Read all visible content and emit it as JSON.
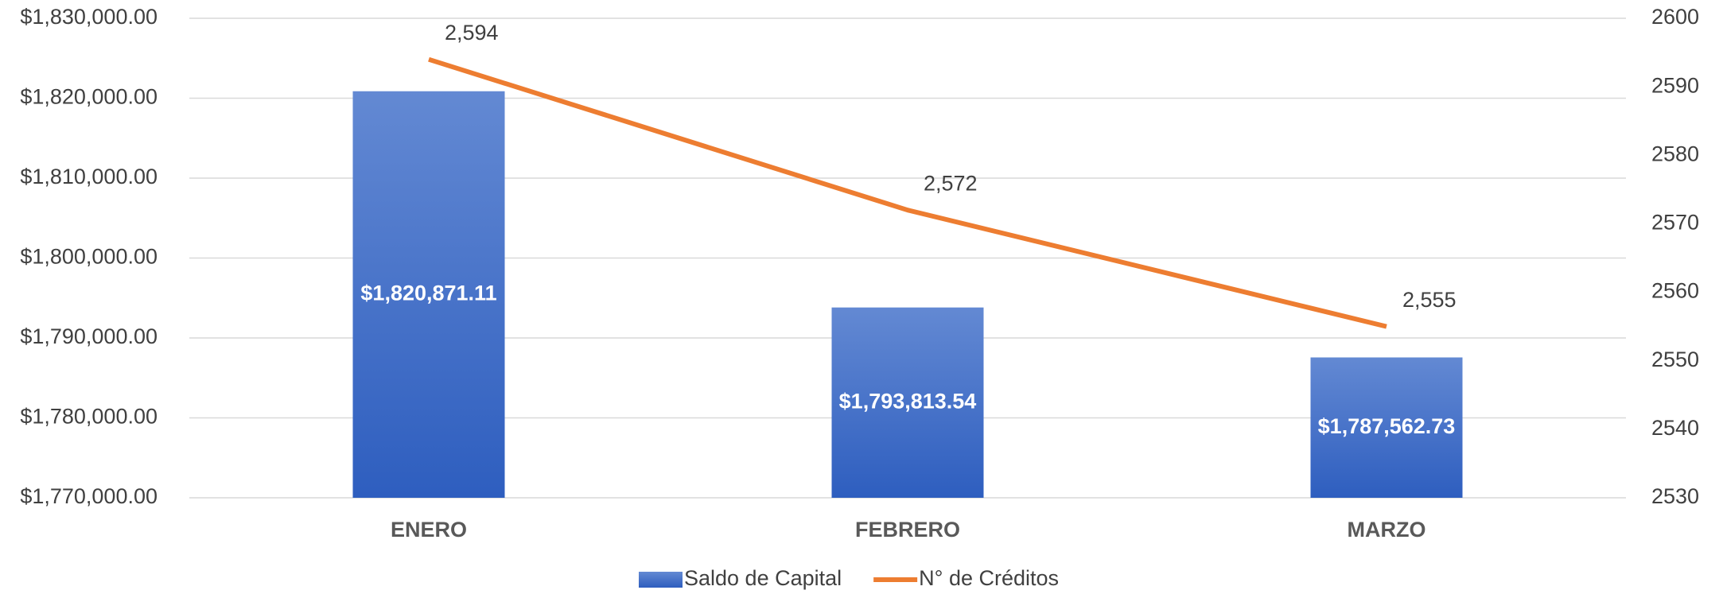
{
  "chart_data": {
    "type": "bar",
    "categories": [
      "ENERO",
      "FEBRERO",
      "MARZO"
    ],
    "series": [
      {
        "name": "Saldo de Capital",
        "color": "#3a68c6",
        "values": [
          1820871.11,
          1793813.54,
          1787562.73
        ],
        "value_labels": [
          "$1,820,871.11",
          "$1,793,813.54",
          "$1,787,562.73"
        ]
      },
      {
        "name": "N° de Créditos",
        "type": "line",
        "axis": "y2",
        "color": "#ed7d31",
        "values": [
          2594,
          2572,
          2555
        ],
        "value_labels": [
          "2,594",
          "2,572",
          "2,555"
        ]
      }
    ],
    "ylim": [
      1770000,
      1830000
    ],
    "yticks": [
      {
        "value": 1770000,
        "label": "$1,770,000.00"
      },
      {
        "value": 1780000,
        "label": "$1,780,000.00"
      },
      {
        "value": 1790000,
        "label": "$1,790,000.00"
      },
      {
        "value": 1800000,
        "label": "$1,800,000.00"
      },
      {
        "value": 1810000,
        "label": "$1,810,000.00"
      },
      {
        "value": 1820000,
        "label": "$1,820,000.00"
      },
      {
        "value": 1830000,
        "label": "$1,830,000.00"
      }
    ],
    "y2lim": [
      2530,
      2600
    ],
    "y2ticks": [
      2530,
      2540,
      2550,
      2560,
      2570,
      2580,
      2590,
      2600
    ],
    "grid": true,
    "legend": "bottom"
  }
}
